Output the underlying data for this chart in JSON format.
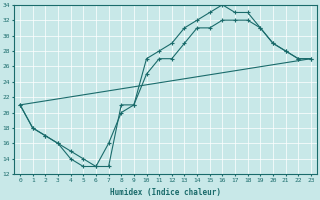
{
  "xlabel": "Humidex (Indice chaleur)",
  "bg_color": "#c8e8e8",
  "line_color": "#1a6b6b",
  "xlim": [
    -0.5,
    23.5
  ],
  "ylim": [
    12,
    34
  ],
  "xticks": [
    0,
    1,
    2,
    3,
    4,
    5,
    6,
    7,
    8,
    9,
    10,
    11,
    12,
    13,
    14,
    15,
    16,
    17,
    18,
    19,
    20,
    21,
    22,
    23
  ],
  "yticks": [
    12,
    14,
    16,
    18,
    20,
    22,
    24,
    26,
    28,
    30,
    32,
    34
  ],
  "line1_x": [
    0,
    1,
    2,
    3,
    4,
    5,
    6,
    7,
    8,
    9,
    10,
    11,
    12,
    13,
    14,
    15,
    16,
    17,
    18,
    19,
    20,
    21,
    22,
    23
  ],
  "line1_y": [
    21,
    18,
    17,
    16,
    15,
    14,
    13,
    16,
    20,
    21,
    25,
    27,
    27,
    29,
    31,
    31,
    32,
    32,
    32,
    31,
    29,
    28,
    27,
    27
  ],
  "line2_x": [
    0,
    1,
    2,
    3,
    4,
    5,
    6,
    7,
    8,
    9,
    10,
    11,
    12,
    13,
    14,
    15,
    16,
    17,
    18,
    19,
    20,
    21,
    22,
    23
  ],
  "line2_y": [
    21,
    18,
    17,
    16,
    14,
    13,
    13,
    13,
    21,
    21,
    27,
    28,
    29,
    31,
    32,
    33,
    34,
    33,
    33,
    31,
    29,
    28,
    27,
    27
  ],
  "line3_x": [
    0,
    23
  ],
  "line3_y": [
    21,
    27
  ],
  "figsize": [
    3.2,
    2.0
  ],
  "dpi": 100
}
